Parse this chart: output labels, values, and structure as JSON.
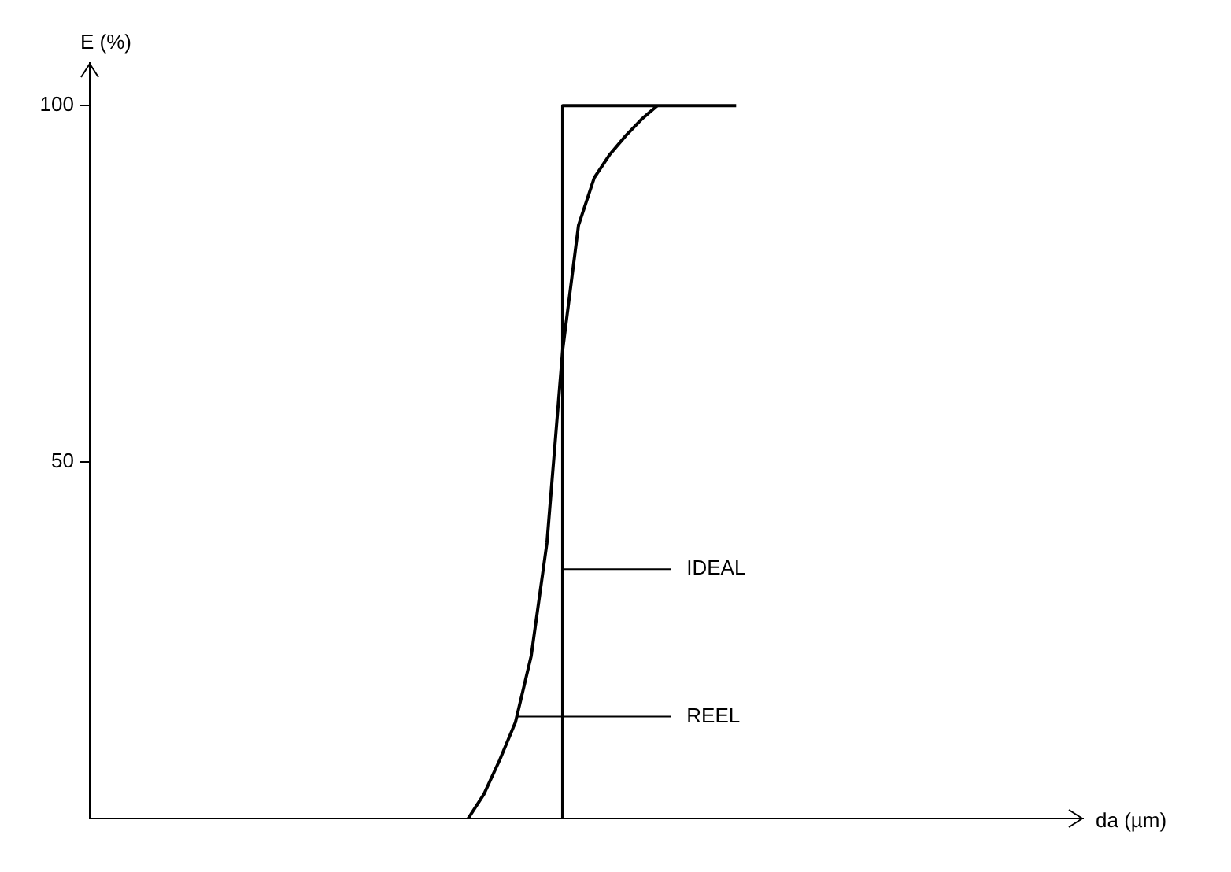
{
  "chart_data": {
    "type": "line",
    "xlabel": "da (µm)",
    "ylabel": "E (%)",
    "categories": [
      null,
      null,
      null,
      null,
      null,
      null,
      null,
      null,
      null,
      null,
      null,
      null,
      null,
      null,
      null,
      null,
      null,
      null,
      null,
      null,
      null,
      null,
      null,
      null,
      null,
      null,
      null,
      null,
      null,
      null,
      null,
      null,
      null,
      null,
      null,
      null,
      null,
      null,
      null,
      null,
      null,
      null,
      null,
      null,
      null,
      null,
      null,
      null,
      null,
      null,
      null,
      null,
      null,
      null,
      null,
      null,
      null,
      null,
      null,
      null,
      null,
      null,
      null,
      null
    ],
    "ylim": [
      0,
      106
    ],
    "yticks": [
      50,
      100
    ],
    "tick_labels": "y",
    "grid": false,
    "legend": false,
    "marker": "none",
    "line_style": "solid",
    "series": [
      {
        "type": "step",
        "color": "#000000",
        "values": [
          null,
          null,
          null,
          null,
          null,
          null,
          null,
          null,
          null,
          null,
          null,
          null,
          null,
          null,
          null,
          null,
          null,
          null,
          null,
          null,
          null,
          null,
          null,
          null,
          null,
          null,
          null,
          null,
          null,
          null,
          0,
          100,
          100,
          100,
          100,
          100,
          100,
          100,
          100,
          100,
          100,
          100,
          null,
          null,
          null,
          null,
          null,
          null,
          null,
          null,
          null,
          null,
          null,
          null,
          null,
          null,
          null,
          null,
          null,
          null,
          null,
          null,
          null,
          null
        ]
      },
      {
        "color": "#000000",
        "values": [
          null,
          null,
          null,
          null,
          null,
          null,
          null,
          null,
          null,
          null,
          null,
          null,
          null,
          null,
          null,
          null,
          null,
          null,
          null,
          null,
          null,
          null,
          null,
          null,
          0,
          3.4,
          8.2,
          13.5,
          22.8,
          38.7,
          65.8,
          83.2,
          89.9,
          93.2,
          95.8,
          98.1,
          100,
          null,
          null,
          null,
          null,
          null,
          null,
          null,
          null,
          null,
          null,
          null,
          null,
          null,
          null,
          null,
          null,
          null,
          null,
          null,
          null,
          null,
          null,
          null,
          null,
          null,
          null,
          null
        ]
      }
    ],
    "annotations": [
      "IDEAL",
      "REEL"
    ]
  }
}
